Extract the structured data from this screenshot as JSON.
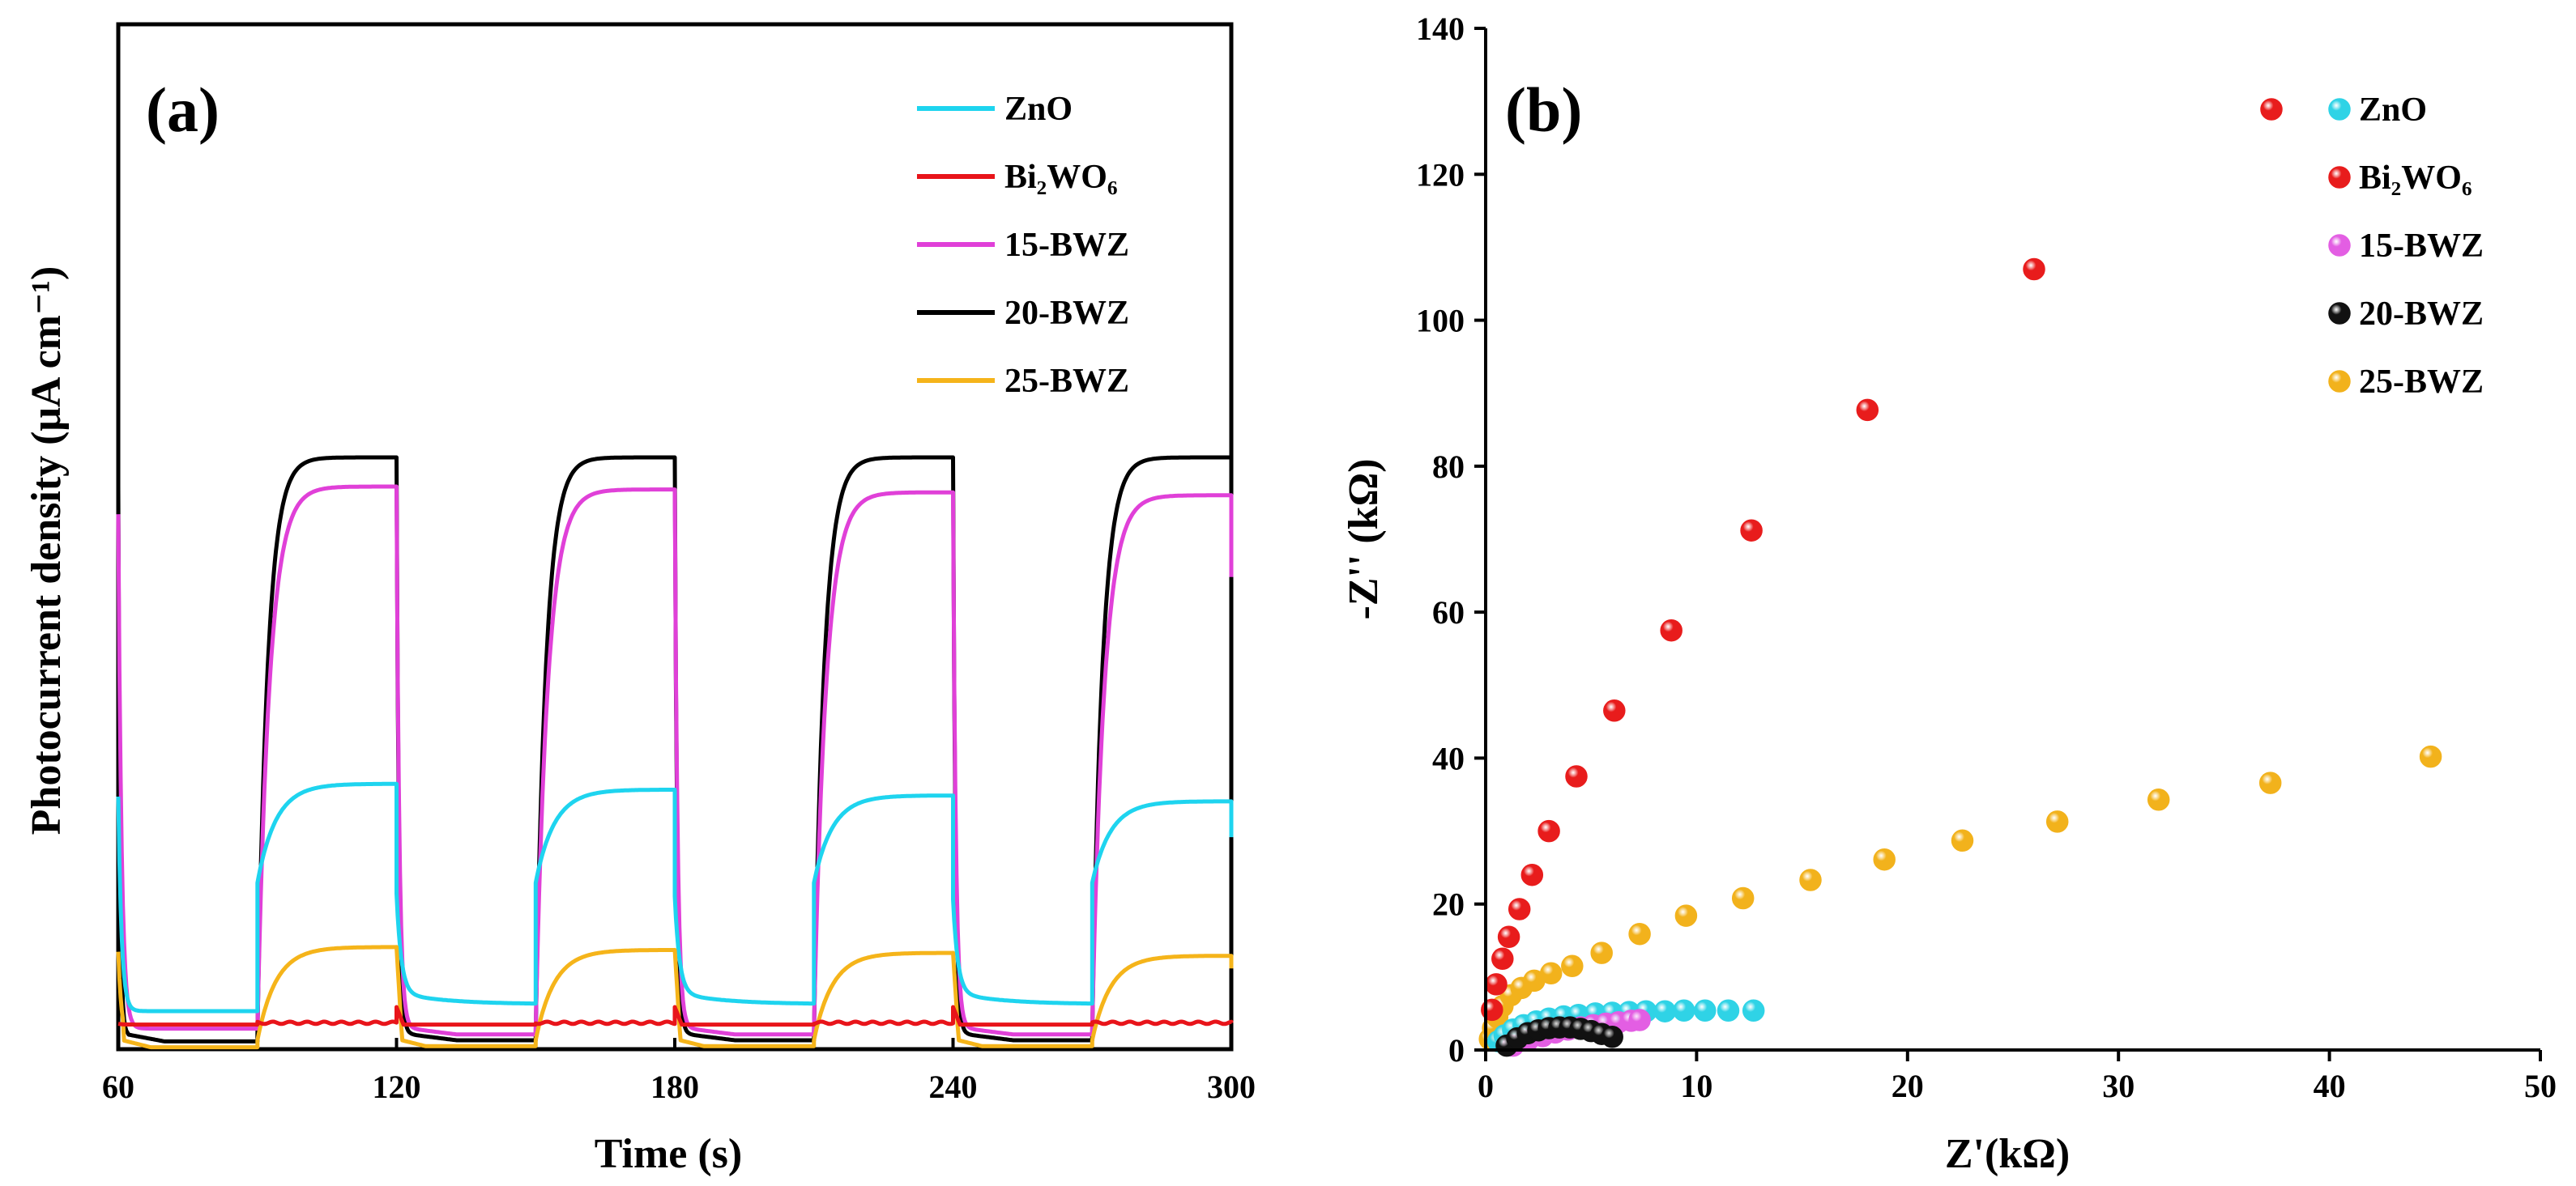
{
  "chart_data": [
    {
      "id": "a",
      "type": "line",
      "panel_label": "(a)",
      "xlabel": "Time (s)",
      "ylabel": "Photocurrent density (μA cm⁻¹)",
      "xlim": [
        60,
        300
      ],
      "ylim": [
        0,
        1
      ],
      "x_ticks": [
        "60",
        "120",
        "180",
        "240",
        "300"
      ],
      "y_ticks_shown": false,
      "light_on_times": [
        90,
        150,
        210,
        270
      ],
      "light_off_times": [
        120,
        180,
        240,
        300
      ],
      "legend_position": "top-right",
      "series": [
        {
          "name": "ZnO",
          "color": "#1ed4ef",
          "on_levels": [
            0.44,
            0.43,
            0.42,
            0.41
          ],
          "off_levels": [
            0.05,
            0.05,
            0.05,
            0.05
          ]
        },
        {
          "name": "Bi₂WO₆",
          "color": "#e8141a",
          "on_levels": [
            0.03,
            0.03,
            0.03,
            0.03
          ],
          "off_levels": [
            0.027,
            0.027,
            0.027,
            0.027
          ]
        },
        {
          "name": "15-BWZ",
          "color": "#e040d8",
          "on_levels": [
            0.95,
            0.945,
            0.94,
            0.935
          ],
          "off_levels": [
            0.02,
            0.02,
            0.02,
            0.02
          ]
        },
        {
          "name": "20-BWZ",
          "color": "#000000",
          "on_levels": [
            1.0,
            1.0,
            1.0,
            1.0
          ],
          "off_levels": [
            0.01,
            0.01,
            0.01,
            0.01
          ]
        },
        {
          "name": "25-BWZ",
          "color": "#f5b41a",
          "on_levels": [
            0.16,
            0.155,
            0.15,
            0.145
          ],
          "off_levels": [
            0.0,
            0.0,
            0.0,
            0.0
          ]
        }
      ]
    },
    {
      "id": "b",
      "type": "scatter",
      "panel_label": "(b)",
      "xlabel": "Z'(kΩ)",
      "ylabel": "-Z'' (kΩ)",
      "xlim": [
        0,
        50
      ],
      "ylim": [
        0,
        140
      ],
      "x_ticks": [
        "0",
        "10",
        "20",
        "30",
        "40",
        "50"
      ],
      "y_ticks": [
        "0",
        "20",
        "40",
        "60",
        "80",
        "100",
        "120",
        "140"
      ],
      "legend_position": "top-right",
      "series": [
        {
          "name": "ZnO",
          "color": "#2fd3e6",
          "x": [
            0.6,
            0.9,
            1.3,
            1.8,
            2.4,
            3.0,
            3.7,
            4.4,
            5.2,
            6.0,
            6.8,
            7.6,
            8.5,
            9.4,
            10.4,
            11.5,
            12.7
          ],
          "y": [
            1.2,
            2.0,
            2.8,
            3.4,
            3.9,
            4.3,
            4.6,
            4.8,
            5.0,
            5.1,
            5.2,
            5.3,
            5.3,
            5.4,
            5.4,
            5.4,
            5.4
          ]
        },
        {
          "name": "Bi₂WO₆",
          "color": "#e81c1c",
          "x": [
            0.3,
            0.5,
            0.8,
            1.1,
            1.6,
            2.2,
            3.0,
            4.3,
            6.1,
            8.8,
            12.6,
            18.1,
            26.0
          ],
          "y": [
            5.5,
            9.0,
            12.5,
            15.5,
            19.3,
            24.0,
            30.0,
            37.5,
            46.5,
            57.5,
            71.2,
            87.7,
            107.0
          ]
        },
        {
          "name": "15-BWZ",
          "color": "#e35ee3",
          "x": [
            1.3,
            2.0,
            2.7,
            3.3,
            3.9,
            4.5,
            5.1,
            5.7,
            6.3,
            6.9,
            7.3
          ],
          "y": [
            0.6,
            1.3,
            1.9,
            2.4,
            2.8,
            3.1,
            3.4,
            3.6,
            3.8,
            4.0,
            4.1
          ]
        },
        {
          "name": "20-BWZ",
          "color": "#111111",
          "x": [
            1.0,
            1.5,
            2.0,
            2.5,
            3.0,
            3.5,
            4.0,
            4.5,
            5.0,
            5.5,
            6.0
          ],
          "y": [
            0.6,
            1.6,
            2.3,
            2.7,
            3.0,
            3.1,
            3.1,
            2.9,
            2.6,
            2.2,
            1.8
          ]
        },
        {
          "name": "25-BWZ",
          "color": "#f2b21c",
          "x": [
            0.2,
            0.35,
            0.55,
            0.8,
            1.2,
            1.7,
            2.3,
            3.1,
            4.1,
            5.5,
            7.3,
            9.5,
            12.2,
            15.4,
            18.9,
            22.6,
            27.1,
            31.9,
            37.2,
            44.8
          ],
          "y": [
            1.5,
            3.0,
            4.5,
            6.0,
            7.5,
            8.5,
            9.5,
            10.5,
            11.5,
            13.3,
            15.9,
            18.4,
            20.8,
            23.3,
            26.1,
            28.7,
            31.3,
            34.3,
            36.6,
            40.2
          ]
        }
      ]
    }
  ]
}
